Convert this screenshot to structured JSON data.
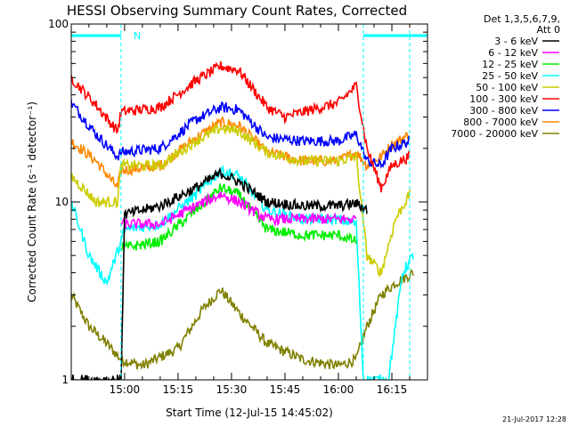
{
  "chart_data": {
    "type": "line",
    "title": "HESSI Observing Summary Count Rates, Corrected",
    "xlabel": "Start Time (12-Jul-15 14:45:02)",
    "ylabel": "Corrected Count Rate (s⁻¹ detector⁻¹)",
    "y_scale": "log",
    "ylim": [
      1,
      100
    ],
    "xlim": [
      "14:45:02",
      "16:25:00"
    ],
    "x_ticks": [
      "15:00",
      "15:15",
      "15:30",
      "15:45",
      "16:00",
      "16:15"
    ],
    "y_ticks": [
      "1",
      "10",
      "100"
    ],
    "legend_header": [
      "Det 1,3,5,6,7,9,",
      "Att 0"
    ],
    "legend_position": "right",
    "grid": false,
    "annotations": [
      {
        "text": "N",
        "x": "15:01",
        "note": "night flag bar 14:45–14:59"
      },
      {
        "text": "",
        "x": "16:07",
        "note": "night flag bar 16:07–16:25"
      }
    ],
    "night_boundaries": [
      "14:59",
      "16:07",
      "16:20"
    ],
    "series": [
      {
        "name": "3 - 6 keV",
        "color": "#000000",
        "points": [
          [
            "14:45",
            1.0
          ],
          [
            "14:59",
            1.0
          ],
          [
            "15:00",
            8.5
          ],
          [
            "15:10",
            9.5
          ],
          [
            "15:20",
            12
          ],
          [
            "15:27",
            14.5
          ],
          [
            "15:32",
            13
          ],
          [
            "15:40",
            10
          ],
          [
            "15:50",
            9.5
          ],
          [
            "16:00",
            9.5
          ],
          [
            "16:05",
            9.8
          ],
          [
            "16:08",
            9.0
          ]
        ]
      },
      {
        "name": "6 - 12 keV",
        "color": "#ff00ff",
        "points": [
          [
            "14:59",
            7.5
          ],
          [
            "15:10",
            7.5
          ],
          [
            "15:20",
            9.5
          ],
          [
            "15:27",
            11
          ],
          [
            "15:32",
            10
          ],
          [
            "15:40",
            8
          ],
          [
            "15:50",
            8
          ],
          [
            "16:00",
            8
          ],
          [
            "16:05",
            8
          ]
        ]
      },
      {
        "name": "12 - 25 keV",
        "color": "#00ee00",
        "points": [
          [
            "14:59",
            5.5
          ],
          [
            "15:10",
            6
          ],
          [
            "15:20",
            9
          ],
          [
            "15:27",
            12
          ],
          [
            "15:32",
            11
          ],
          [
            "15:40",
            7
          ],
          [
            "15:50",
            6.5
          ],
          [
            "16:00",
            6.5
          ],
          [
            "16:05",
            6
          ]
        ]
      },
      {
        "name": "25 - 50 keV",
        "color": "#00ffff",
        "points": [
          [
            "14:45",
            10
          ],
          [
            "14:50",
            5
          ],
          [
            "14:55",
            3.5
          ],
          [
            "14:59",
            6
          ],
          [
            "15:00",
            7
          ],
          [
            "15:10",
            7.5
          ],
          [
            "15:20",
            11
          ],
          [
            "15:27",
            15
          ],
          [
            "15:32",
            14
          ],
          [
            "15:40",
            9
          ],
          [
            "15:50",
            8
          ],
          [
            "16:00",
            8
          ],
          [
            "16:05",
            7.5
          ],
          [
            "16:07",
            1.0
          ],
          [
            "16:14",
            1.0
          ],
          [
            "16:18",
            4
          ],
          [
            "16:21",
            5
          ]
        ]
      },
      {
        "name": "50 - 100 keV",
        "color": "#cccc00",
        "points": [
          [
            "14:45",
            14
          ],
          [
            "14:52",
            10
          ],
          [
            "14:58",
            10
          ],
          [
            "14:59",
            16
          ],
          [
            "15:10",
            16
          ],
          [
            "15:20",
            22
          ],
          [
            "15:27",
            26
          ],
          [
            "15:32",
            25
          ],
          [
            "15:40",
            19
          ],
          [
            "15:50",
            17
          ],
          [
            "16:00",
            17
          ],
          [
            "16:05",
            18
          ],
          [
            "16:08",
            5
          ],
          [
            "16:12",
            4
          ],
          [
            "16:16",
            8
          ],
          [
            "16:20",
            11
          ]
        ]
      },
      {
        "name": "100 - 300 keV",
        "color": "#ff0000",
        "points": [
          [
            "14:45",
            50
          ],
          [
            "14:52",
            35
          ],
          [
            "14:58",
            25
          ],
          [
            "14:59",
            32
          ],
          [
            "15:10",
            34
          ],
          [
            "15:20",
            48
          ],
          [
            "15:27",
            58
          ],
          [
            "15:32",
            55
          ],
          [
            "15:40",
            34
          ],
          [
            "15:45",
            30
          ],
          [
            "15:50",
            32
          ],
          [
            "16:00",
            36
          ],
          [
            "16:05",
            45
          ],
          [
            "16:08",
            20
          ],
          [
            "16:12",
            12
          ],
          [
            "16:15",
            16
          ],
          [
            "16:20",
            18
          ]
        ]
      },
      {
        "name": "300 - 800 keV",
        "color": "#0000ff",
        "points": [
          [
            "14:45",
            36
          ],
          [
            "14:52",
            24
          ],
          [
            "14:58",
            18
          ],
          [
            "14:59",
            19
          ],
          [
            "15:10",
            20
          ],
          [
            "15:20",
            29
          ],
          [
            "15:27",
            34
          ],
          [
            "15:32",
            33
          ],
          [
            "15:40",
            23
          ],
          [
            "15:50",
            22
          ],
          [
            "16:00",
            22
          ],
          [
            "16:05",
            24
          ],
          [
            "16:08",
            17
          ],
          [
            "16:12",
            16
          ],
          [
            "16:15",
            20
          ],
          [
            "16:20",
            22
          ]
        ]
      },
      {
        "name": "800 - 7000 keV",
        "color": "#ff8800",
        "points": [
          [
            "14:45",
            22
          ],
          [
            "14:52",
            17
          ],
          [
            "14:58",
            12
          ],
          [
            "14:59",
            15
          ],
          [
            "15:10",
            16
          ],
          [
            "15:20",
            23
          ],
          [
            "15:27",
            28
          ],
          [
            "15:32",
            27
          ],
          [
            "15:40",
            19
          ],
          [
            "15:50",
            17
          ],
          [
            "16:00",
            17
          ],
          [
            "16:05",
            19
          ],
          [
            "16:08",
            16
          ],
          [
            "16:12",
            18
          ],
          [
            "16:15",
            21
          ],
          [
            "16:20",
            24
          ]
        ]
      },
      {
        "name": "7000 - 20000 keV",
        "color": "#808000",
        "points": [
          [
            "14:45",
            3
          ],
          [
            "14:50",
            2
          ],
          [
            "14:55",
            1.6
          ],
          [
            "14:59",
            1.3
          ],
          [
            "15:05",
            1.2
          ],
          [
            "15:15",
            1.5
          ],
          [
            "15:22",
            2.5
          ],
          [
            "15:27",
            3.2
          ],
          [
            "15:32",
            2.4
          ],
          [
            "15:40",
            1.6
          ],
          [
            "15:50",
            1.3
          ],
          [
            "16:00",
            1.2
          ],
          [
            "16:05",
            1.3
          ],
          [
            "16:08",
            2
          ],
          [
            "16:12",
            3
          ],
          [
            "16:16",
            3.5
          ],
          [
            "16:21",
            4
          ]
        ]
      }
    ]
  },
  "footer": {
    "timestamp": "21-Jul-2017 12:28"
  }
}
